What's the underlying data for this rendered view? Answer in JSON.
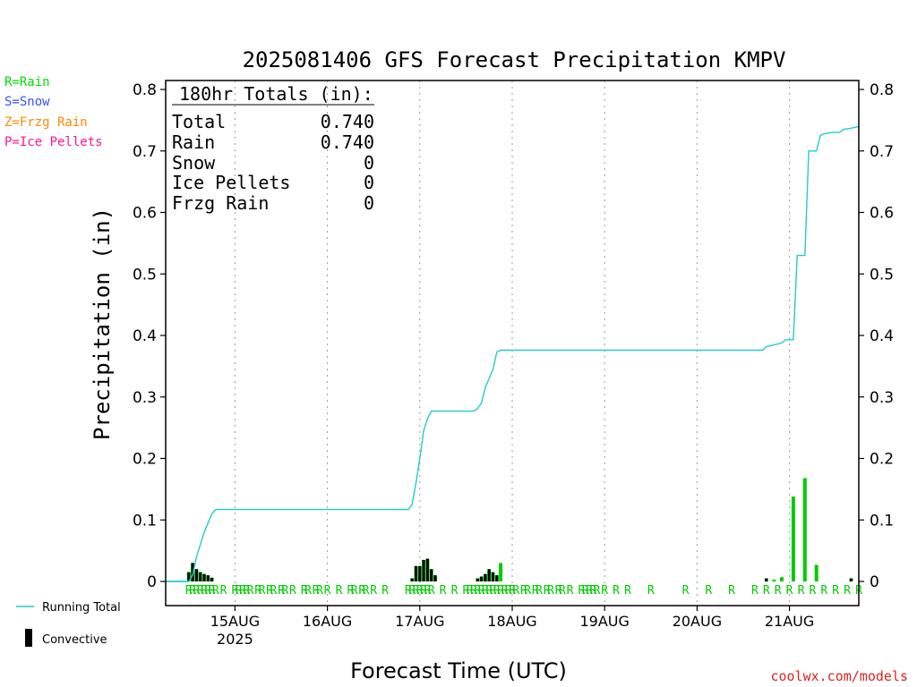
{
  "chart_data": {
    "type": "bar",
    "title": "2025081406 GFS Forecast Precipitation KMPV",
    "xlabel": "Forecast Time (UTC)",
    "ylabel": "Precipitation (in)",
    "credit": "coolwx.com/models",
    "ylim": [
      0,
      0.8
    ],
    "yticks": [
      0,
      0.1,
      0.2,
      0.3,
      0.4,
      0.5,
      0.6,
      0.7,
      0.8
    ],
    "ytick_labels": [
      "0",
      "0.1",
      "0.2",
      "0.3",
      "0.4",
      "0.5",
      "0.6",
      "0.7",
      "0.8"
    ],
    "x_range_hours": [
      0,
      180
    ],
    "x_ticks": [
      {
        "hour": 18,
        "label": "15AUG",
        "sublabel": "2025"
      },
      {
        "hour": 42,
        "label": "16AUG",
        "sublabel": ""
      },
      {
        "hour": 66,
        "label": "17AUG",
        "sublabel": ""
      },
      {
        "hour": 90,
        "label": "18AUG",
        "sublabel": ""
      },
      {
        "hour": 114,
        "label": "19AUG",
        "sublabel": ""
      },
      {
        "hour": 138,
        "label": "20AUG",
        "sublabel": ""
      },
      {
        "hour": 162,
        "label": "21AUG",
        "sublabel": ""
      }
    ],
    "grid": "vertical dotted at day boundaries",
    "legend_types": [
      {
        "text": "R=Rain",
        "color": "#00dd00"
      },
      {
        "text": "S=Snow",
        "color": "#3355ff"
      },
      {
        "text": "Z=Frzg Rain",
        "color": "#ff8800"
      },
      {
        "text": "P=Ice Pellets",
        "color": "#ff1493"
      }
    ],
    "legend_series": [
      {
        "text": "Running Total",
        "color": "#22cccc"
      },
      {
        "text": "Convective",
        "color": "#000000"
      }
    ],
    "totals": {
      "heading": "180hr Totals (in):",
      "rows": [
        {
          "label": "Total",
          "value": "0.740"
        },
        {
          "label": "Rain",
          "value": "0.740"
        },
        {
          "label": "Snow",
          "value": "0"
        },
        {
          "label": "Ice Pellets",
          "value": "0"
        },
        {
          "label": "Frzg Rain",
          "value": "0"
        }
      ]
    },
    "series": [
      {
        "name": "Running Total",
        "kind": "line",
        "color": "#22cccc",
        "points": [
          [
            0,
            0
          ],
          [
            6,
            0
          ],
          [
            7,
            0.01
          ],
          [
            8,
            0.04
          ],
          [
            9,
            0.06
          ],
          [
            10,
            0.08
          ],
          [
            11,
            0.095
          ],
          [
            12,
            0.11
          ],
          [
            13,
            0.117
          ],
          [
            14,
            0.117
          ],
          [
            20,
            0.117
          ],
          [
            40,
            0.117
          ],
          [
            60,
            0.117
          ],
          [
            63,
            0.117
          ],
          [
            64,
            0.125
          ],
          [
            65,
            0.16
          ],
          [
            66,
            0.2
          ],
          [
            67,
            0.245
          ],
          [
            68,
            0.265
          ],
          [
            69,
            0.277
          ],
          [
            70,
            0.277
          ],
          [
            80,
            0.277
          ],
          [
            81,
            0.281
          ],
          [
            82,
            0.29
          ],
          [
            83,
            0.315
          ],
          [
            84,
            0.33
          ],
          [
            85,
            0.345
          ],
          [
            86,
            0.373
          ],
          [
            87,
            0.376
          ],
          [
            90,
            0.376
          ],
          [
            120,
            0.376
          ],
          [
            155,
            0.376
          ],
          [
            156,
            0.382
          ],
          [
            157,
            0.383
          ],
          [
            158,
            0.385
          ],
          [
            159,
            0.386
          ],
          [
            160,
            0.388
          ],
          [
            161,
            0.393
          ],
          [
            163,
            0.393
          ],
          [
            164,
            0.53
          ],
          [
            166,
            0.53
          ],
          [
            167,
            0.7
          ],
          [
            169,
            0.7
          ],
          [
            170,
            0.725
          ],
          [
            171,
            0.728
          ],
          [
            173,
            0.73
          ],
          [
            175,
            0.73
          ],
          [
            176,
            0.735
          ],
          [
            178,
            0.737
          ],
          [
            180,
            0.74
          ]
        ]
      },
      {
        "name": "Total",
        "kind": "bar",
        "color": "#00cc00",
        "points": [
          [
            6,
            0.015
          ],
          [
            7,
            0.03
          ],
          [
            8,
            0.02
          ],
          [
            9,
            0.015
          ],
          [
            10,
            0.012
          ],
          [
            11,
            0.01
          ],
          [
            12,
            0.006
          ],
          [
            64,
            0.005
          ],
          [
            65,
            0.025
          ],
          [
            66,
            0.025
          ],
          [
            67,
            0.035
          ],
          [
            68,
            0.037
          ],
          [
            69,
            0.02
          ],
          [
            70,
            0.01
          ],
          [
            81,
            0.005
          ],
          [
            82,
            0.008
          ],
          [
            83,
            0.012
          ],
          [
            84,
            0.02
          ],
          [
            85,
            0.015
          ],
          [
            86,
            0.01
          ],
          [
            87,
            0.03
          ],
          [
            156,
            0.005
          ],
          [
            158,
            0.003
          ],
          [
            160,
            0.007
          ],
          [
            163,
            0.138
          ],
          [
            166,
            0.168
          ],
          [
            169,
            0.027
          ],
          [
            178,
            0.005
          ]
        ]
      },
      {
        "name": "Convective",
        "kind": "bar",
        "color": "#000000",
        "points": [
          [
            6,
            0.015
          ],
          [
            7,
            0.03
          ],
          [
            8,
            0.02
          ],
          [
            9,
            0.015
          ],
          [
            10,
            0.012
          ],
          [
            11,
            0.01
          ],
          [
            12,
            0.006
          ],
          [
            64,
            0.005
          ],
          [
            65,
            0.025
          ],
          [
            66,
            0.025
          ],
          [
            67,
            0.035
          ],
          [
            68,
            0.037
          ],
          [
            69,
            0.02
          ],
          [
            70,
            0.01
          ],
          [
            81,
            0.005
          ],
          [
            82,
            0.008
          ],
          [
            83,
            0.012
          ],
          [
            84,
            0.02
          ],
          [
            85,
            0.015
          ],
          [
            86,
            0.01
          ],
          [
            156,
            0.005
          ],
          [
            178,
            0.005
          ]
        ]
      }
    ],
    "precip_type_markers": {
      "text": "R",
      "color": "#00cc00",
      "hours": [
        6,
        7,
        8,
        9,
        10,
        11,
        12,
        13,
        15,
        18,
        19,
        20,
        21,
        22,
        24,
        25,
        27,
        28,
        30,
        31,
        33,
        36,
        37,
        39,
        40,
        42,
        45,
        48,
        49,
        51,
        52,
        54,
        57,
        63,
        64,
        65,
        66,
        67,
        68,
        69,
        72,
        75,
        78,
        79,
        80,
        81,
        82,
        83,
        84,
        85,
        86,
        87,
        88,
        89,
        90,
        91,
        93,
        94,
        96,
        97,
        99,
        100,
        102,
        103,
        105,
        108,
        109,
        110,
        111,
        112,
        114,
        117,
        120,
        126,
        135,
        141,
        147,
        153,
        156,
        159,
        162,
        165,
        168,
        171,
        174,
        177,
        180
      ]
    }
  }
}
